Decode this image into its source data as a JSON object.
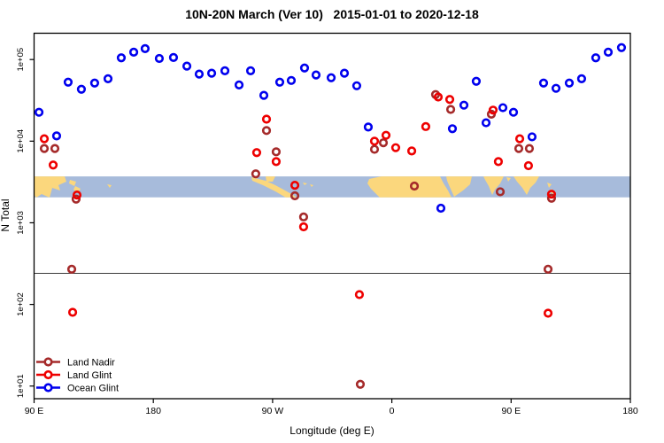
{
  "title": "10N-20N March (Ver 10)   2015-01-01 to 2020-12-18",
  "x_axis": {
    "label": "Longitude (deg E)",
    "ticks": [
      {
        "pos": 0,
        "label": "90 E"
      },
      {
        "pos": 90,
        "label": "180"
      },
      {
        "pos": 180,
        "label": "90 W"
      },
      {
        "pos": 270,
        "label": "0"
      },
      {
        "pos": 360,
        "label": "90 E"
      },
      {
        "pos": 450,
        "label": "180"
      }
    ]
  },
  "y_axis": {
    "label": "N Total",
    "ticks": [
      {
        "value": 10,
        "label": "1e+01"
      },
      {
        "value": 100,
        "label": "1e+02"
      },
      {
        "value": 1000,
        "label": "1e+03"
      },
      {
        "value": 10000,
        "label": "1e+04"
      },
      {
        "value": 100000,
        "label": "1e+05"
      }
    ]
  },
  "legend": {
    "items": [
      {
        "label": "Land Nadir",
        "color": "#A52A2A"
      },
      {
        "label": "Land Glint",
        "color": "#EE0000"
      },
      {
        "label": "Ocean Glint",
        "color": "#0000EE"
      }
    ]
  },
  "chart_data": {
    "type": "scatter",
    "x_unit": "degrees eastward from 90E along wrapped longitude axis (0-450)",
    "xlim": [
      0,
      450
    ],
    "ylim": [
      7,
      210000
    ],
    "log_y": true,
    "reference_line_n": 240,
    "map_band": {
      "n_top": 3700,
      "n_bottom": 2050,
      "ocean_color": "#a7bbdb",
      "land_color": "#fbd77d",
      "land_shapes": [
        [
          [
            38.5,
            199
          ],
          [
            73,
            199
          ],
          [
            75,
            205
          ],
          [
            66,
            209
          ],
          [
            68,
            215
          ],
          [
            59,
            212
          ],
          [
            56,
            223
          ],
          [
            47,
            219
          ],
          [
            41,
            223
          ],
          [
            38.5,
            220
          ]
        ],
        [
          [
            79,
            203
          ],
          [
            86,
            205
          ],
          [
            84,
            210
          ],
          [
            78,
            207
          ]
        ],
        [
          [
            85,
            210
          ],
          [
            91,
            213
          ],
          [
            88,
            218
          ],
          [
            83,
            214
          ]
        ],
        [
          [
            121,
            208
          ],
          [
            126,
            209
          ],
          [
            124,
            212
          ]
        ],
        [
          [
            300,
            199
          ],
          [
            311,
            199
          ],
          [
            308,
            205
          ],
          [
            301,
            205
          ]
        ],
        [
          [
            284,
            200
          ],
          [
            300,
            204
          ],
          [
            311,
            209
          ],
          [
            322,
            215
          ],
          [
            331,
            220
          ],
          [
            335,
            223
          ],
          [
            323,
            223
          ],
          [
            311,
            216
          ],
          [
            297,
            209
          ],
          [
            285,
            204
          ]
        ],
        [
          [
            333,
            204
          ],
          [
            338,
            205
          ],
          [
            336,
            208
          ]
        ],
        [
          [
            342,
            206
          ],
          [
            347,
            207
          ],
          [
            344,
            209
          ]
        ],
        [
          [
            350,
            208
          ],
          [
            354,
            209
          ],
          [
            352,
            211
          ]
        ],
        [
          [
            417,
            202
          ],
          [
            431,
            199
          ],
          [
            497,
            199
          ],
          [
            501,
            207
          ],
          [
            506,
            215
          ],
          [
            510,
            223
          ],
          [
            429,
            223
          ],
          [
            419,
            213
          ],
          [
            415,
            207
          ]
        ],
        [
          [
            504,
            199
          ],
          [
            533,
            199
          ],
          [
            531,
            208
          ],
          [
            523,
            215
          ],
          [
            513,
            222
          ],
          [
            508,
            211
          ],
          [
            505,
            204
          ]
        ],
        [
          [
            546,
            199
          ],
          [
            569,
            199
          ],
          [
            565,
            207
          ],
          [
            559,
            214
          ],
          [
            556,
            220
          ],
          [
            552,
            210
          ],
          [
            548,
            203
          ]
        ],
        [
          [
            572,
            200
          ],
          [
            577,
            201
          ],
          [
            574,
            205
          ]
        ],
        [
          [
            580,
            199
          ],
          [
            609,
            199
          ],
          [
            605,
            206
          ],
          [
            599,
            212
          ],
          [
            595,
            220
          ],
          [
            590,
            212
          ],
          [
            584,
            205
          ]
        ],
        [
          [
            618,
            206
          ],
          [
            623,
            208
          ],
          [
            620,
            212
          ]
        ],
        [
          [
            622,
            213
          ],
          [
            627,
            216
          ],
          [
            623,
            220
          ]
        ]
      ]
    },
    "series": [
      {
        "name": "Land Nadir",
        "color": "#A52A2A",
        "points": [
          [
            7.7,
            8130
          ],
          [
            15.7,
            8130
          ],
          [
            31.7,
            1950
          ],
          [
            28.4,
            270
          ],
          [
            167.3,
            3980
          ],
          [
            175.4,
            13500
          ],
          [
            182.7,
            7410
          ],
          [
            196.8,
            2140
          ],
          [
            203.4,
            1180
          ],
          [
            246.2,
            10.5
          ],
          [
            256.9,
            7940
          ],
          [
            263.6,
            9550
          ],
          [
            287.0,
            2820
          ],
          [
            303.0,
            37200
          ],
          [
            314.4,
            24500
          ],
          [
            345.1,
            21400
          ],
          [
            351.8,
            2400
          ],
          [
            365.8,
            8130
          ],
          [
            373.8,
            8130
          ],
          [
            390.5,
            2000
          ],
          [
            387.9,
            270
          ]
        ]
      },
      {
        "name": "Land Glint",
        "color": "#EE0000",
        "points": [
          [
            7.7,
            10700
          ],
          [
            14.4,
            5100
          ],
          [
            32.4,
            2190
          ],
          [
            29.1,
            80
          ],
          [
            168.0,
            7240
          ],
          [
            175.4,
            18600
          ],
          [
            182.7,
            5620
          ],
          [
            196.8,
            2880
          ],
          [
            203.4,
            892
          ],
          [
            245.5,
            132
          ],
          [
            256.9,
            10000
          ],
          [
            265.6,
            11800
          ],
          [
            272.9,
            8320
          ],
          [
            285.0,
            7590
          ],
          [
            295.6,
            15100
          ],
          [
            305.0,
            34700
          ],
          [
            313.7,
            32400
          ],
          [
            346.4,
            24000
          ],
          [
            350.4,
            5620
          ],
          [
            366.5,
            10700
          ],
          [
            373.1,
            5010
          ],
          [
            390.5,
            2240
          ],
          [
            387.9,
            78
          ]
        ]
      },
      {
        "name": "Ocean Glint",
        "color": "#0000EE",
        "points": [
          [
            3.7,
            22600
          ],
          [
            17.0,
            11600
          ],
          [
            25.7,
            52800
          ],
          [
            35.7,
            43200
          ],
          [
            45.7,
            51500
          ],
          [
            55.8,
            58200
          ],
          [
            65.8,
            105000
          ],
          [
            75.2,
            123000
          ],
          [
            83.8,
            136000
          ],
          [
            94.5,
            103000
          ],
          [
            105.2,
            106000
          ],
          [
            115.3,
            83000
          ],
          [
            124.6,
            66300
          ],
          [
            134.0,
            68000
          ],
          [
            144.0,
            72800
          ],
          [
            154.7,
            48800
          ],
          [
            163.4,
            72800
          ],
          [
            173.4,
            36400
          ],
          [
            185.4,
            52800
          ],
          [
            194.1,
            55400
          ],
          [
            204.1,
            78700
          ],
          [
            212.8,
            64700
          ],
          [
            224.2,
            59800
          ],
          [
            234.2,
            68000
          ],
          [
            243.5,
            47700
          ],
          [
            252.2,
            14900
          ],
          [
            307.0,
            1510
          ],
          [
            315.7,
            14200
          ],
          [
            324.4,
            27600
          ],
          [
            333.7,
            54100
          ],
          [
            341.1,
            16800
          ],
          [
            353.8,
            25700
          ],
          [
            361.8,
            22600
          ],
          [
            375.8,
            11300
          ],
          [
            384.5,
            51500
          ],
          [
            393.9,
            44400
          ],
          [
            403.9,
            51500
          ],
          [
            413.2,
            58200
          ],
          [
            423.9,
            105000
          ],
          [
            433.3,
            123000
          ],
          [
            443.3,
            140000
          ]
        ]
      }
    ]
  }
}
